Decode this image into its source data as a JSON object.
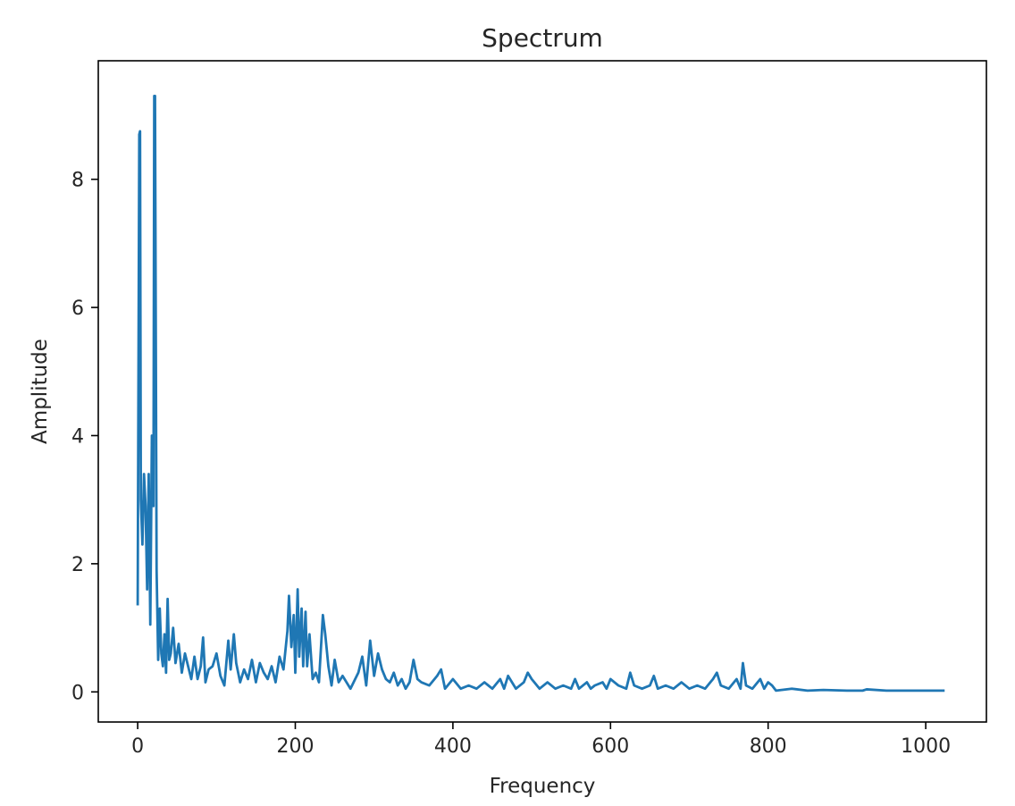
{
  "chart_data": {
    "type": "line",
    "title": "Spectrum",
    "xlabel": "Frequency",
    "ylabel": "Amplitude",
    "xlim": [
      -50,
      1077
    ],
    "ylim": [
      -0.47,
      9.85
    ],
    "xticks": [
      0,
      200,
      400,
      600,
      800,
      1000
    ],
    "xtick_labels": [
      "0",
      "200",
      "400",
      "600",
      "800",
      "1000"
    ],
    "yticks": [
      0,
      2,
      4,
      6,
      8
    ],
    "ytick_labels": [
      "0",
      "2",
      "4",
      "6",
      "8"
    ],
    "grid": false,
    "legend": "none",
    "series": [
      {
        "color": "#1f77b4",
        "x": [
          0,
          2,
          3,
          4,
          6,
          8,
          10,
          12,
          14,
          16,
          18,
          20,
          21,
          22,
          24,
          26,
          28,
          30,
          32,
          34,
          36,
          38,
          40,
          42,
          45,
          48,
          52,
          56,
          60,
          64,
          68,
          72,
          76,
          80,
          83,
          86,
          90,
          95,
          100,
          105,
          110,
          115,
          118,
          122,
          125,
          130,
          135,
          140,
          145,
          150,
          155,
          160,
          165,
          170,
          175,
          180,
          185,
          190,
          192,
          195,
          198,
          200,
          203,
          205,
          208,
          210,
          213,
          215,
          218,
          222,
          226,
          230,
          235,
          238,
          242,
          246,
          250,
          255,
          260,
          270,
          280,
          285,
          290,
          295,
          300,
          305,
          310,
          315,
          320,
          325,
          330,
          335,
          340,
          345,
          350,
          355,
          360,
          370,
          380,
          385,
          390,
          400,
          410,
          420,
          430,
          440,
          445,
          450,
          460,
          465,
          470,
          480,
          490,
          495,
          500,
          510,
          520,
          530,
          540,
          550,
          555,
          560,
          570,
          575,
          580,
          590,
          595,
          600,
          610,
          620,
          625,
          630,
          640,
          650,
          655,
          660,
          670,
          680,
          690,
          700,
          710,
          720,
          730,
          735,
          740,
          750,
          760,
          765,
          768,
          772,
          780,
          790,
          795,
          800,
          805,
          810,
          830,
          850,
          870,
          900,
          920,
          925,
          950,
          1000,
          1024
        ],
        "y": [
          1.35,
          8.7,
          8.75,
          3.0,
          2.3,
          3.4,
          2.9,
          1.6,
          3.4,
          1.05,
          4.0,
          2.9,
          9.3,
          9.3,
          1.9,
          0.5,
          1.3,
          0.6,
          0.4,
          0.9,
          0.3,
          1.45,
          0.5,
          0.6,
          1.0,
          0.45,
          0.75,
          0.3,
          0.6,
          0.4,
          0.2,
          0.55,
          0.2,
          0.4,
          0.85,
          0.15,
          0.35,
          0.4,
          0.6,
          0.25,
          0.1,
          0.8,
          0.35,
          0.9,
          0.45,
          0.15,
          0.35,
          0.2,
          0.5,
          0.15,
          0.45,
          0.3,
          0.2,
          0.4,
          0.15,
          0.55,
          0.35,
          0.95,
          1.5,
          0.7,
          1.2,
          0.3,
          1.6,
          0.55,
          1.3,
          0.4,
          1.25,
          0.4,
          0.9,
          0.2,
          0.3,
          0.15,
          1.2,
          0.9,
          0.4,
          0.1,
          0.5,
          0.15,
          0.25,
          0.05,
          0.3,
          0.55,
          0.1,
          0.8,
          0.25,
          0.6,
          0.35,
          0.2,
          0.15,
          0.3,
          0.1,
          0.2,
          0.05,
          0.15,
          0.5,
          0.2,
          0.15,
          0.1,
          0.25,
          0.35,
          0.05,
          0.2,
          0.05,
          0.1,
          0.05,
          0.15,
          0.1,
          0.05,
          0.2,
          0.05,
          0.25,
          0.05,
          0.15,
          0.3,
          0.2,
          0.05,
          0.15,
          0.05,
          0.1,
          0.05,
          0.2,
          0.05,
          0.15,
          0.05,
          0.1,
          0.15,
          0.05,
          0.2,
          0.1,
          0.05,
          0.3,
          0.1,
          0.05,
          0.1,
          0.25,
          0.05,
          0.1,
          0.05,
          0.15,
          0.05,
          0.1,
          0.05,
          0.2,
          0.3,
          0.1,
          0.05,
          0.2,
          0.05,
          0.45,
          0.1,
          0.05,
          0.2,
          0.05,
          0.15,
          0.1,
          0.02,
          0.05,
          0.02,
          0.03,
          0.02,
          0.02,
          0.04,
          0.02,
          0.02,
          0.02
        ]
      }
    ]
  }
}
